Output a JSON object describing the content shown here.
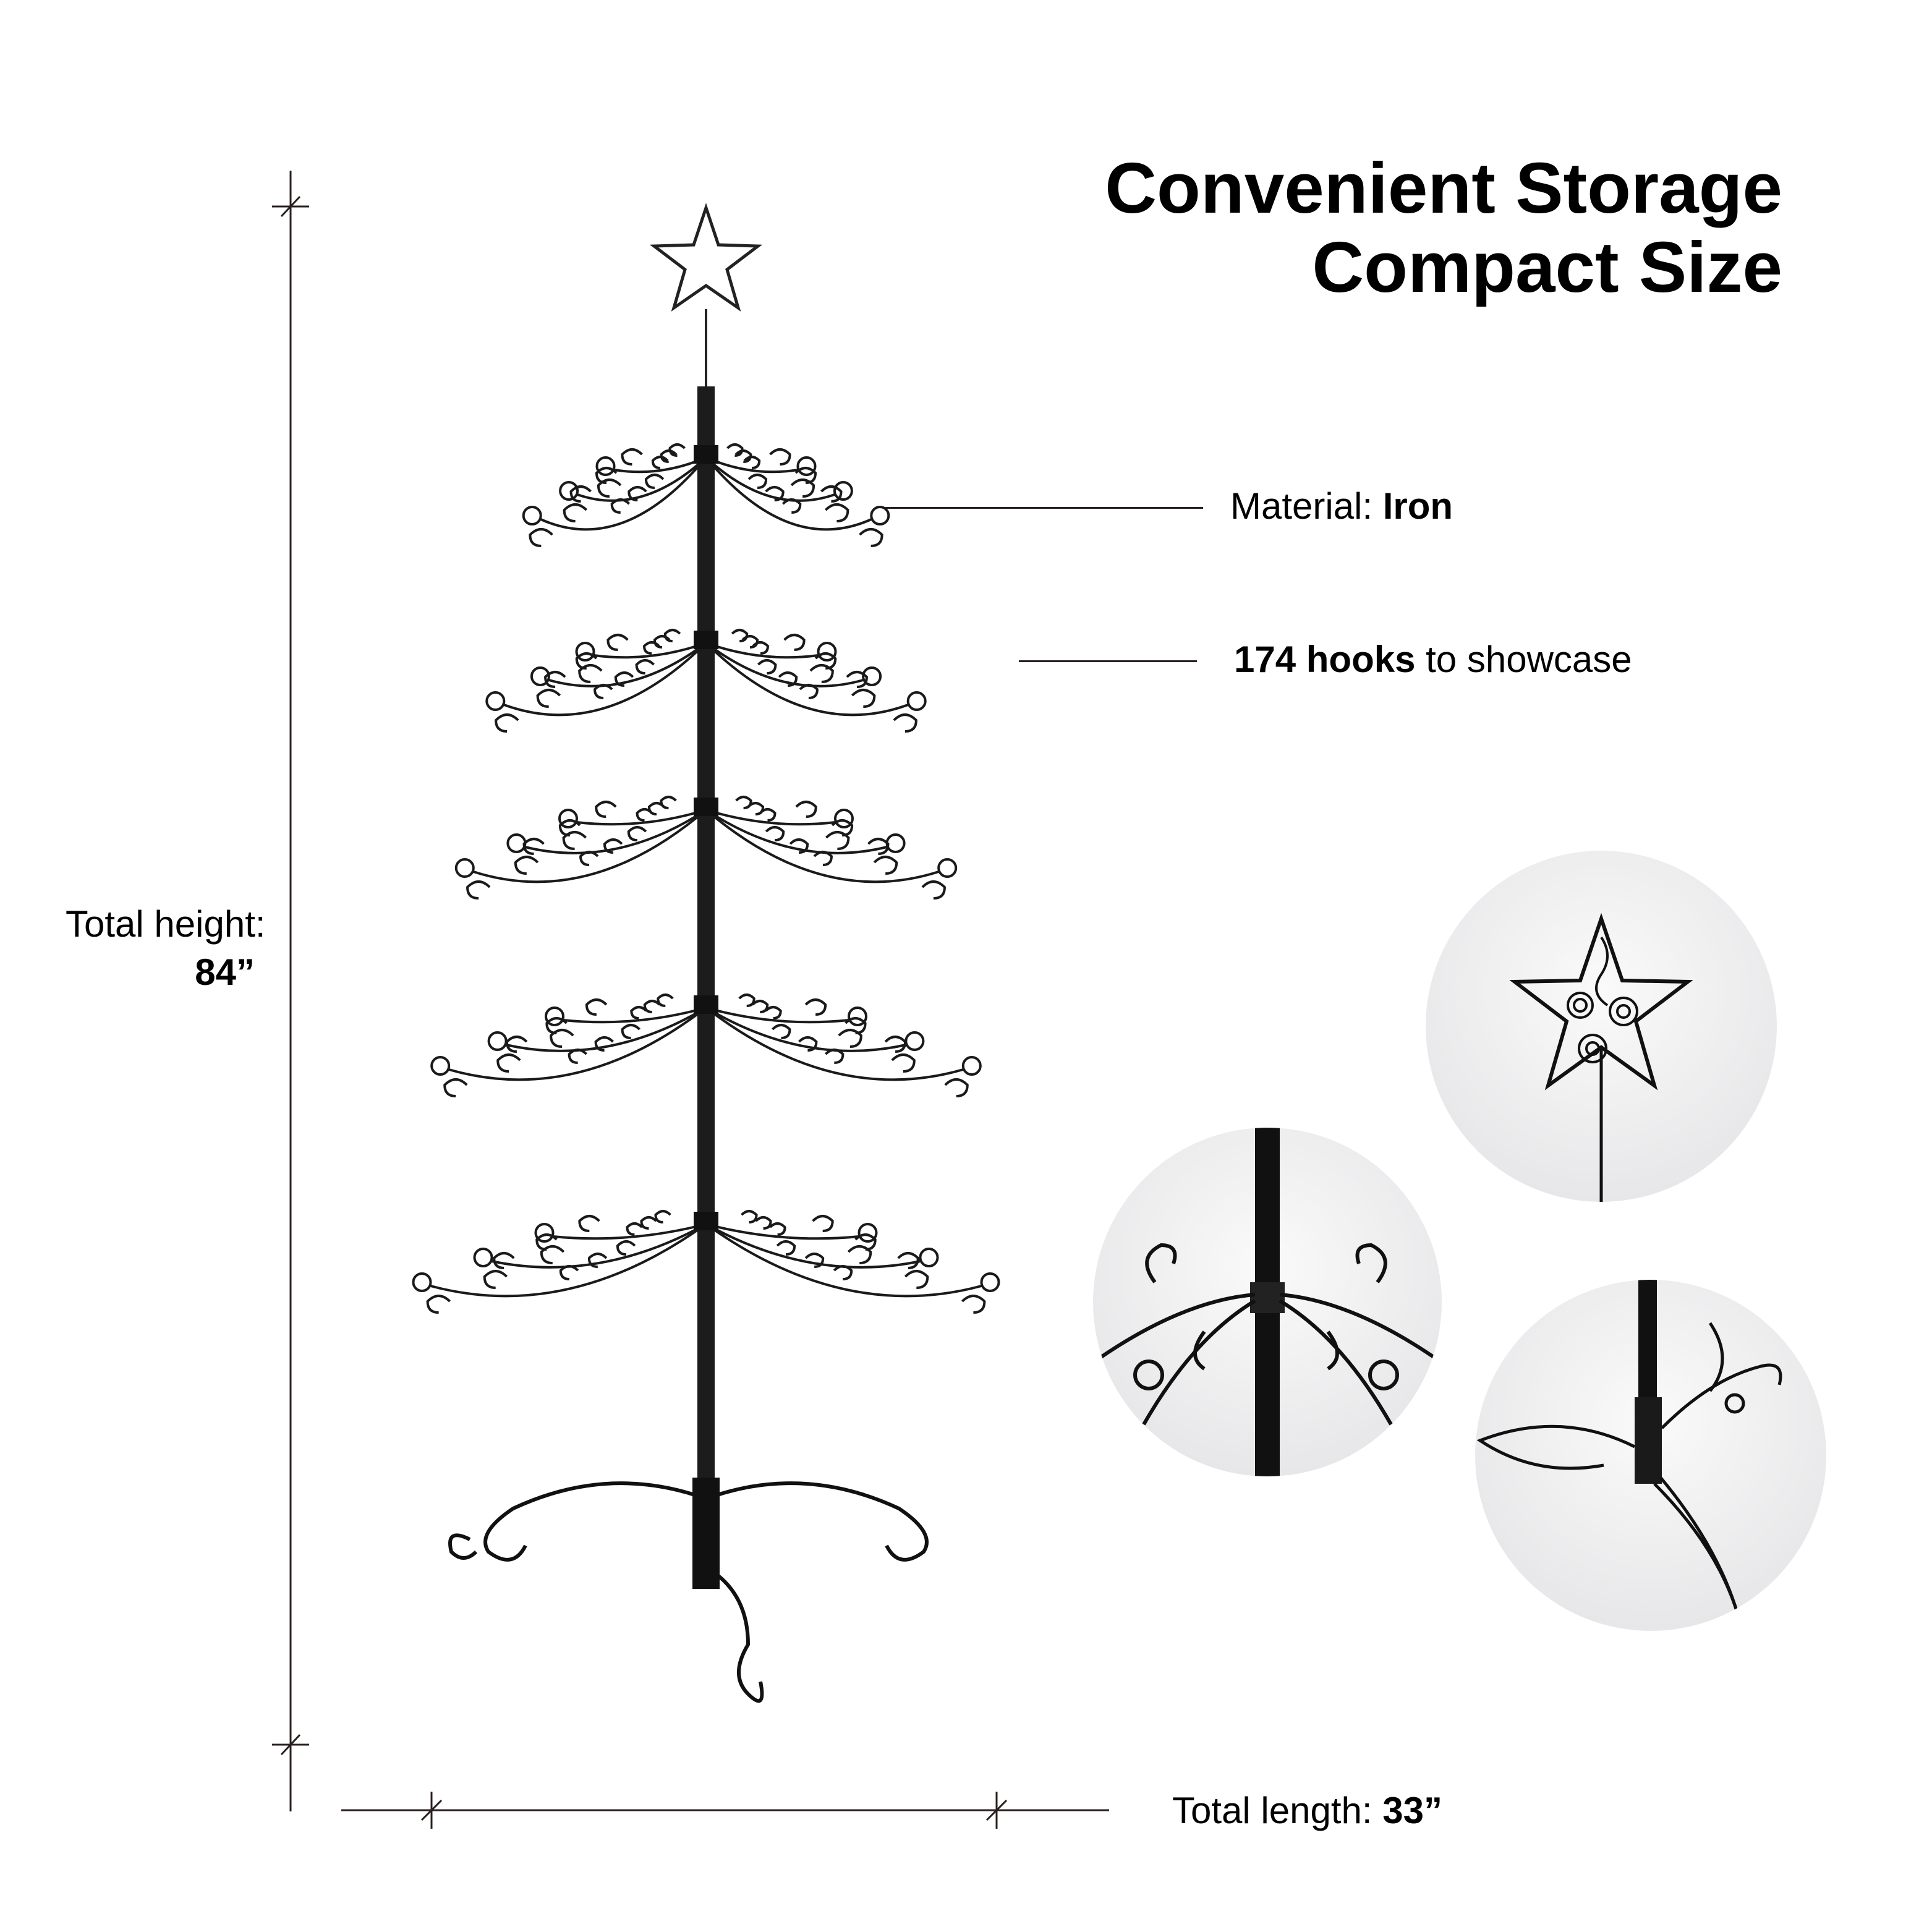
{
  "title": {
    "line1": "Convenient Storage",
    "line2": "Compact Size"
  },
  "specs": {
    "material_label": "Material: ",
    "material_value": "Iron",
    "hooks_count": "174 hooks",
    "hooks_suffix": " to showcase"
  },
  "dimensions": {
    "height_label": "Total height:",
    "height_value": "84”",
    "length_label": "Total length: ",
    "length_value": "33”"
  },
  "colors": {
    "ink": "#000000",
    "rule": "#2a1f1f",
    "circle_bg": "#e8e8ea"
  },
  "detail_images": [
    "star-topper-closeup",
    "branch-joint-closeup",
    "base-stand-closeup"
  ]
}
